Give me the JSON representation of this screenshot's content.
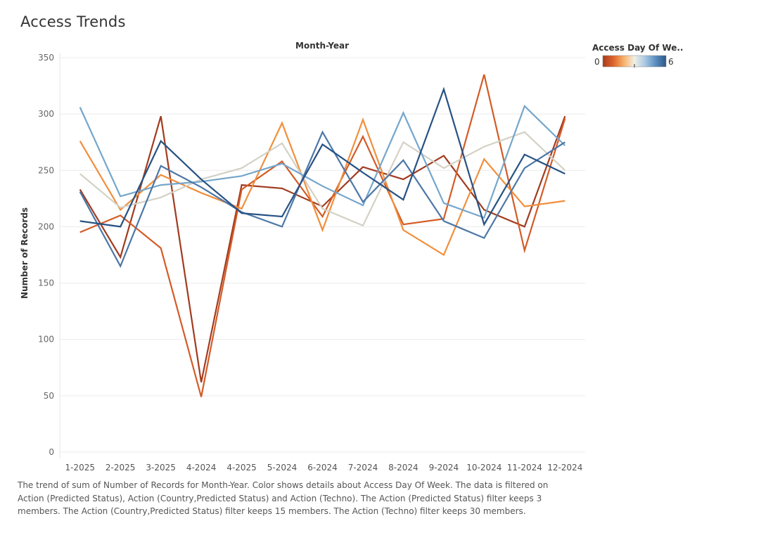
{
  "title": "Access Trends",
  "caption": "The trend of sum of Number of Records for Month-Year.  Color shows details about Access Day Of Week. The data is filtered on Action (Predicted Status), Action (Country,Predicted Status) and Action (Techno). The Action (Predicted Status) filter keeps 3 members. The Action (Country,Predicted Status) filter keeps 15 members. The Action (Techno) filter keeps 30 members.",
  "legend": {
    "title": "Access Day Of We..",
    "min_label": "0",
    "max_label": "6",
    "gradient": [
      "#a63a1c",
      "#e0642c",
      "#f7b36b",
      "#f2efe6",
      "#a9c9e2",
      "#5b8fc0",
      "#2c5787"
    ]
  },
  "chart_data": {
    "type": "line",
    "title": "Access Trends",
    "top_axis_label": "Month-Year",
    "xlabel": "",
    "ylabel": "Number of Records",
    "categories": [
      "1-2025",
      "2-2025",
      "3-2025",
      "4-2024",
      "4-2025",
      "5-2024",
      "6-2024",
      "7-2024",
      "8-2024",
      "9-2024",
      "10-2024",
      "11-2024",
      "12-2024"
    ],
    "ylim": [
      0,
      350
    ],
    "yticks": [
      0,
      50,
      100,
      150,
      200,
      250,
      300,
      350
    ],
    "grid": "horizontal",
    "legend_position": "top-right",
    "series": [
      {
        "color": "#a13b1f",
        "values": [
          233,
          173,
          298,
          62,
          237,
          234,
          218,
          253,
          242,
          263,
          215,
          200,
          298
        ]
      },
      {
        "color": "#d35b27",
        "values": [
          195,
          210,
          181,
          49,
          233,
          258,
          209,
          280,
          202,
          207,
          335,
          179,
          296
        ]
      },
      {
        "color": "#f08f3c",
        "values": [
          276,
          215,
          246,
          230,
          216,
          292,
          197,
          295,
          197,
          175,
          260,
          218,
          223
        ]
      },
      {
        "color": "#d4d1c5",
        "values": [
          247,
          217,
          226,
          242,
          252,
          274,
          216,
          201,
          275,
          252,
          271,
          284,
          250
        ]
      },
      {
        "color": "#75a6cb",
        "values": [
          306,
          227,
          237,
          240,
          245,
          256,
          236,
          219,
          301,
          221,
          208,
          307,
          272
        ]
      },
      {
        "color": "#4c77a7",
        "values": [
          231,
          165,
          254,
          235,
          213,
          200,
          284,
          222,
          259,
          205,
          190,
          252,
          275
        ]
      },
      {
        "color": "#265283",
        "values": [
          205,
          200,
          276,
          242,
          212,
          209,
          273,
          248,
          224,
          322,
          202,
          264,
          247
        ]
      }
    ]
  }
}
